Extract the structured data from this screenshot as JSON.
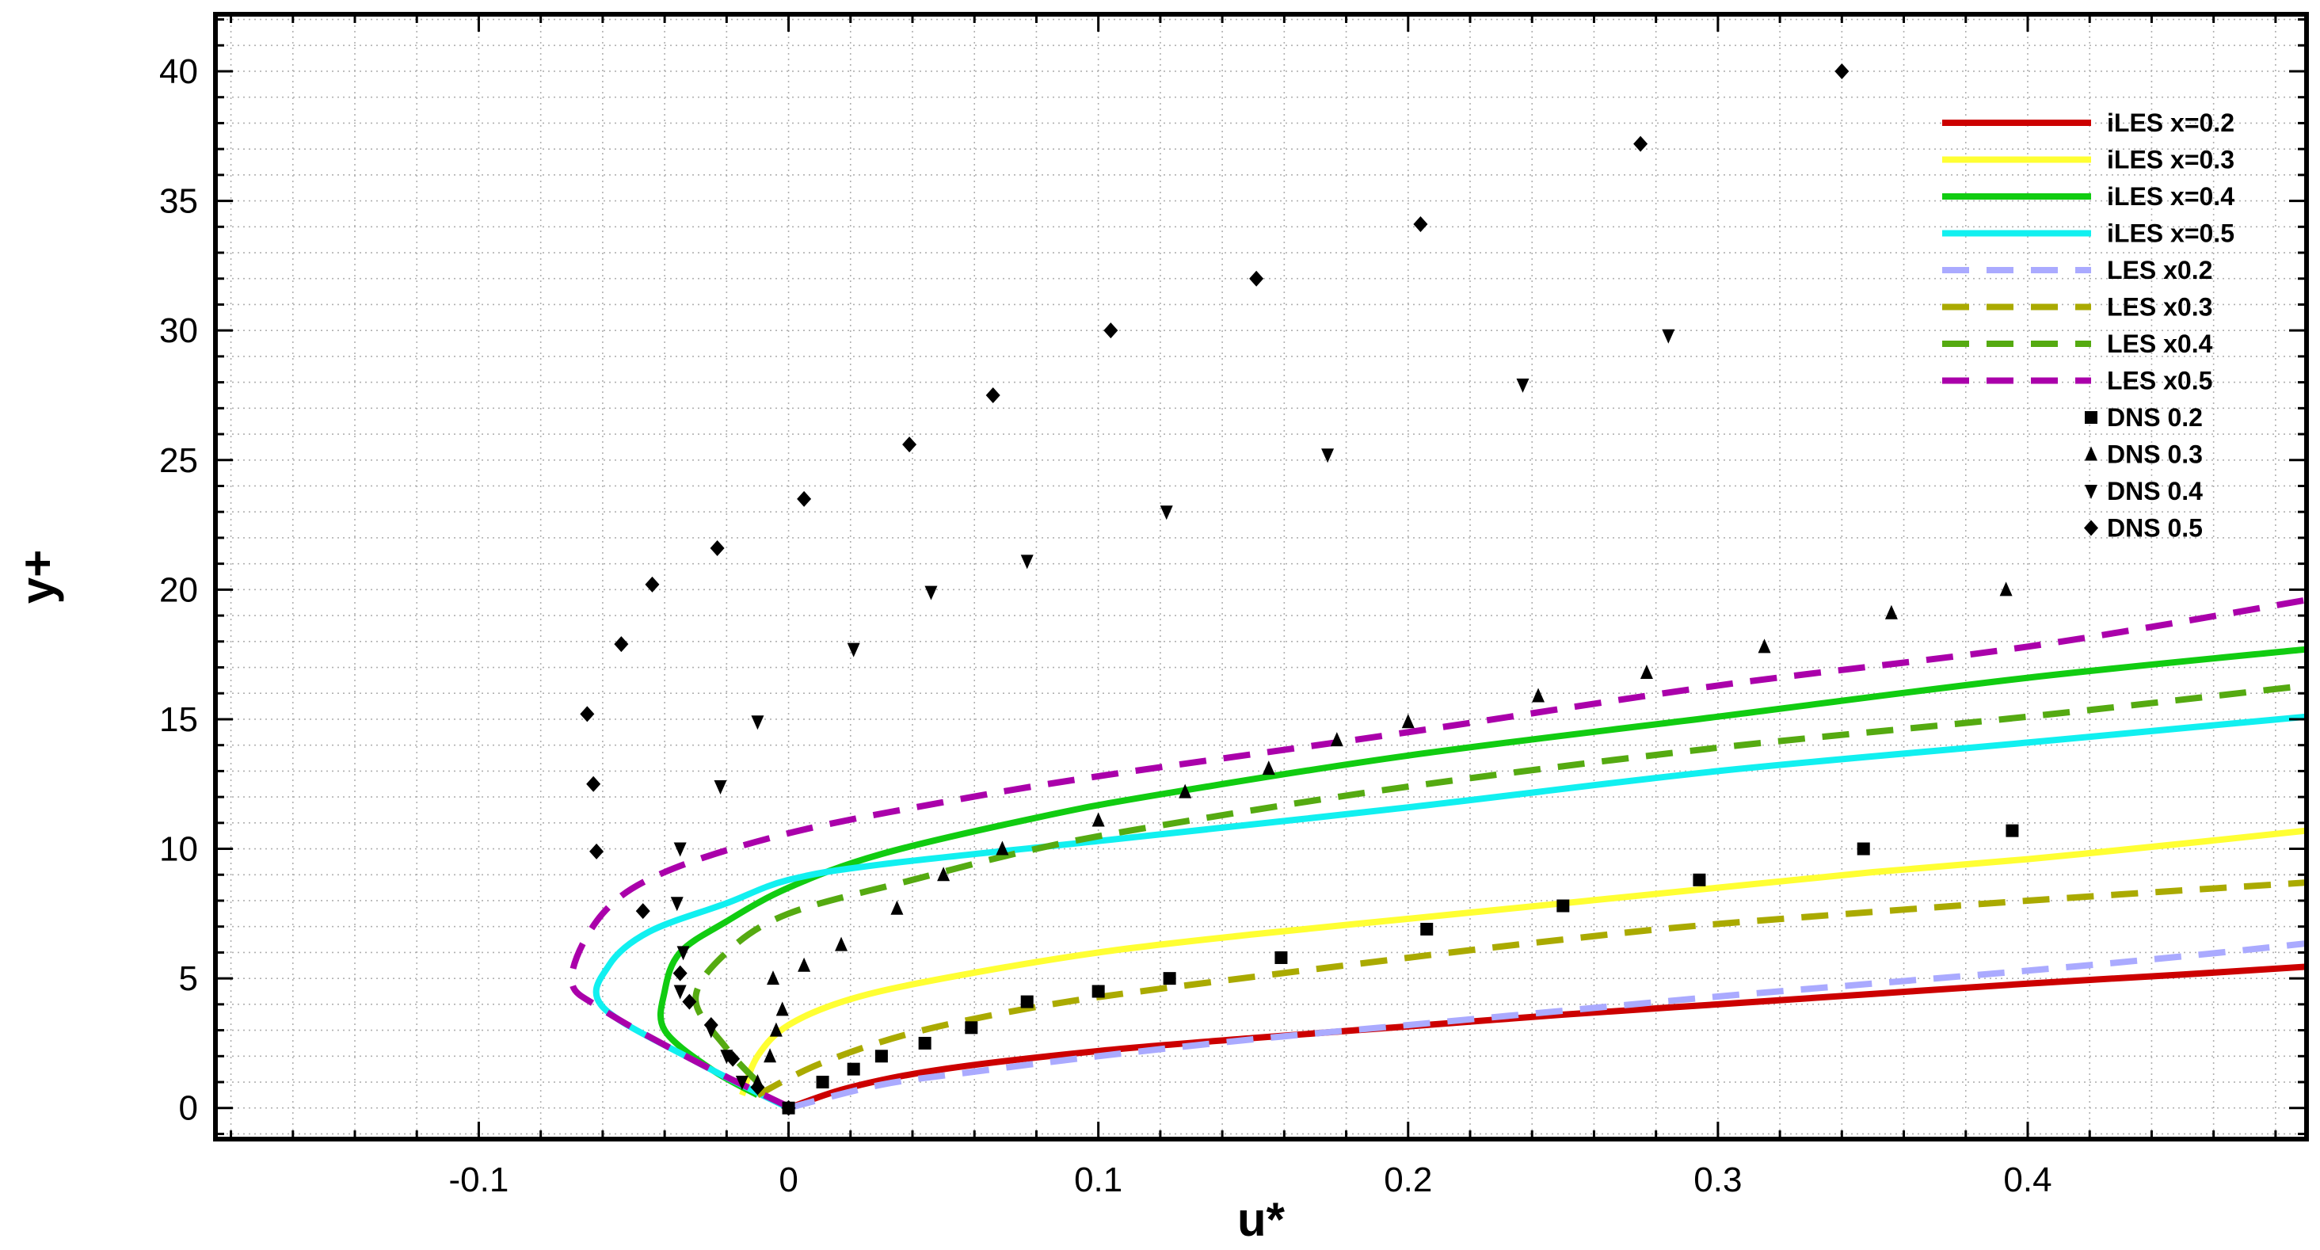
{
  "chart_data": {
    "type": "line",
    "title": "",
    "xlabel": "u*",
    "ylabel": "y+",
    "xlim": [
      -0.185,
      0.49
    ],
    "ylim": [
      -1.2,
      42.2
    ],
    "x_ticks": [
      -0.1,
      0,
      0.1,
      0.2,
      0.3,
      0.4
    ],
    "x_tick_labels": [
      "-0.1",
      "0",
      "0.1",
      "0.2",
      "0.3",
      "0.4"
    ],
    "y_ticks": [
      0,
      5,
      10,
      15,
      20,
      25,
      30,
      35,
      40
    ],
    "y_tick_labels": [
      "0",
      "5",
      "10",
      "15",
      "20",
      "25",
      "30",
      "35",
      "40"
    ],
    "grid": true,
    "legend_position": "top-right",
    "series": [
      {
        "name": "iLES x=0.2",
        "style": "solid",
        "color": "#cc0000",
        "points": [
          [
            0,
            0
          ],
          [
            0.02,
            0.8
          ],
          [
            0.05,
            1.5
          ],
          [
            0.1,
            2.2
          ],
          [
            0.15,
            2.7
          ],
          [
            0.2,
            3.15
          ],
          [
            0.25,
            3.6
          ],
          [
            0.3,
            4.0
          ],
          [
            0.35,
            4.4
          ],
          [
            0.4,
            4.8
          ],
          [
            0.45,
            5.15
          ],
          [
            0.49,
            5.45
          ]
        ]
      },
      {
        "name": "iLES x=0.3",
        "style": "solid",
        "color": "#ffff33",
        "points": [
          [
            -0.015,
            0.5
          ],
          [
            -0.01,
            2.0
          ],
          [
            0,
            3.2
          ],
          [
            0.02,
            4.2
          ],
          [
            0.05,
            5.0
          ],
          [
            0.1,
            6.0
          ],
          [
            0.15,
            6.7
          ],
          [
            0.2,
            7.3
          ],
          [
            0.25,
            7.9
          ],
          [
            0.3,
            8.5
          ],
          [
            0.35,
            9.1
          ],
          [
            0.4,
            9.6
          ],
          [
            0.45,
            10.2
          ],
          [
            0.49,
            10.7
          ]
        ]
      },
      {
        "name": "iLES x=0.4",
        "style": "solid",
        "color": "#11cc11",
        "points": [
          [
            -0.01,
            0.5
          ],
          [
            -0.025,
            1.5
          ],
          [
            -0.04,
            3.0
          ],
          [
            -0.04,
            4.5
          ],
          [
            -0.035,
            6.0
          ],
          [
            -0.02,
            7.2
          ],
          [
            0,
            8.5
          ],
          [
            0.03,
            9.8
          ],
          [
            0.08,
            11.2
          ],
          [
            0.12,
            12.1
          ],
          [
            0.2,
            13.6
          ],
          [
            0.3,
            15.1
          ],
          [
            0.4,
            16.6
          ],
          [
            0.49,
            17.7
          ]
        ]
      },
      {
        "name": "iLES x=0.5",
        "style": "solid",
        "color": "#11f0f0",
        "points": [
          [
            0,
            0
          ],
          [
            -0.03,
            1.8
          ],
          [
            -0.06,
            3.9
          ],
          [
            -0.058,
            5.5
          ],
          [
            -0.045,
            6.8
          ],
          [
            -0.02,
            7.9
          ],
          [
            0,
            8.8
          ],
          [
            0.03,
            9.4
          ],
          [
            0.1,
            10.3
          ],
          [
            0.2,
            11.6
          ],
          [
            0.3,
            13.0
          ],
          [
            0.4,
            14.1
          ],
          [
            0.49,
            15.1
          ]
        ]
      },
      {
        "name": "LES x0.2",
        "style": "dashed",
        "color": "#aaaaff",
        "points": [
          [
            0,
            0
          ],
          [
            0.03,
            0.9
          ],
          [
            0.06,
            1.4
          ],
          [
            0.1,
            2.0
          ],
          [
            0.15,
            2.65
          ],
          [
            0.2,
            3.2
          ],
          [
            0.25,
            3.75
          ],
          [
            0.3,
            4.3
          ],
          [
            0.35,
            4.8
          ],
          [
            0.4,
            5.3
          ],
          [
            0.45,
            5.85
          ],
          [
            0.49,
            6.35
          ]
        ]
      },
      {
        "name": "LES x0.3",
        "style": "dashed",
        "color": "#aaaa00",
        "points": [
          [
            -0.01,
            0.5
          ],
          [
            0.01,
            1.7
          ],
          [
            0.04,
            2.9
          ],
          [
            0.08,
            3.9
          ],
          [
            0.12,
            4.6
          ],
          [
            0.2,
            5.8
          ],
          [
            0.25,
            6.5
          ],
          [
            0.3,
            7.1
          ],
          [
            0.4,
            8.0
          ],
          [
            0.49,
            8.7
          ]
        ]
      },
      {
        "name": "LES x0.4",
        "style": "dashed",
        "color": "#55aa11",
        "points": [
          [
            -0.01,
            1.0
          ],
          [
            -0.02,
            2.3
          ],
          [
            -0.03,
            4.2
          ],
          [
            -0.02,
            6.0
          ],
          [
            0,
            7.5
          ],
          [
            0.04,
            8.8
          ],
          [
            0.08,
            10.0
          ],
          [
            0.12,
            10.9
          ],
          [
            0.2,
            12.4
          ],
          [
            0.3,
            13.9
          ],
          [
            0.4,
            15.1
          ],
          [
            0.49,
            16.3
          ]
        ]
      },
      {
        "name": "LES x0.5",
        "style": "dashed",
        "color": "#aa00aa",
        "points": [
          [
            0,
            0.05
          ],
          [
            -0.03,
            1.8
          ],
          [
            -0.06,
            3.8
          ],
          [
            -0.07,
            5.0
          ],
          [
            -0.06,
            7.5
          ],
          [
            -0.04,
            9.1
          ],
          [
            0,
            10.6
          ],
          [
            0.05,
            11.8
          ],
          [
            0.1,
            12.8
          ],
          [
            0.2,
            14.5
          ],
          [
            0.3,
            16.3
          ],
          [
            0.4,
            17.8
          ],
          [
            0.49,
            19.6
          ]
        ]
      }
    ],
    "scatter_series": [
      {
        "name": "DNS 0.2",
        "marker": "square",
        "color": "#000000",
        "points": [
          [
            0,
            0
          ],
          [
            0.011,
            1.0
          ],
          [
            0.021,
            1.5
          ],
          [
            0.03,
            2.0
          ],
          [
            0.044,
            2.5
          ],
          [
            0.059,
            3.1
          ],
          [
            0.077,
            4.1
          ],
          [
            0.1,
            4.5
          ],
          [
            0.123,
            5.0
          ],
          [
            0.159,
            5.8
          ],
          [
            0.206,
            6.9
          ],
          [
            0.25,
            7.8
          ],
          [
            0.294,
            8.8
          ],
          [
            0.347,
            10.0
          ],
          [
            0.395,
            10.7
          ]
        ]
      },
      {
        "name": "DNS 0.3",
        "marker": "triangle-up",
        "color": "#000000",
        "points": [
          [
            -0.01,
            1.0
          ],
          [
            -0.006,
            2.0
          ],
          [
            -0.004,
            3.0
          ],
          [
            -0.002,
            3.8
          ],
          [
            -0.005,
            5.0
          ],
          [
            0.005,
            5.5
          ],
          [
            0.017,
            6.3
          ],
          [
            0.035,
            7.7
          ],
          [
            0.05,
            9.0
          ],
          [
            0.069,
            10.0
          ],
          [
            0.1,
            11.1
          ],
          [
            0.128,
            12.2
          ],
          [
            0.155,
            13.1
          ],
          [
            0.177,
            14.2
          ],
          [
            0.2,
            14.9
          ],
          [
            0.242,
            15.9
          ],
          [
            0.277,
            16.8
          ],
          [
            0.315,
            17.8
          ],
          [
            0.356,
            19.1
          ],
          [
            0.393,
            20.0
          ]
        ]
      },
      {
        "name": "DNS 0.4",
        "marker": "triangle-down",
        "color": "#000000",
        "points": [
          [
            -0.015,
            1.0
          ],
          [
            -0.02,
            2.0
          ],
          [
            -0.025,
            3.0
          ],
          [
            -0.035,
            4.5
          ],
          [
            -0.034,
            6.0
          ],
          [
            -0.036,
            7.9
          ],
          [
            -0.035,
            10.0
          ],
          [
            -0.022,
            12.4
          ],
          [
            -0.01,
            14.9
          ],
          [
            0.021,
            17.7
          ],
          [
            0.046,
            19.9
          ],
          [
            0.077,
            21.1
          ],
          [
            0.122,
            23.0
          ],
          [
            0.174,
            25.2
          ],
          [
            0.237,
            27.9
          ],
          [
            0.284,
            29.8
          ]
        ]
      },
      {
        "name": "DNS 0.5",
        "marker": "diamond",
        "color": "#000000",
        "points": [
          [
            0,
            0
          ],
          [
            -0.01,
            0.8
          ],
          [
            -0.018,
            1.9
          ],
          [
            -0.025,
            3.2
          ],
          [
            -0.032,
            4.1
          ],
          [
            -0.035,
            5.2
          ],
          [
            -0.047,
            7.6
          ],
          [
            -0.062,
            9.9
          ],
          [
            -0.063,
            12.5
          ],
          [
            -0.065,
            15.2
          ],
          [
            -0.054,
            17.9
          ],
          [
            -0.044,
            20.2
          ],
          [
            -0.023,
            21.6
          ],
          [
            0.005,
            23.5
          ],
          [
            0.039,
            25.6
          ],
          [
            0.066,
            27.5
          ],
          [
            0.104,
            30.0
          ],
          [
            0.151,
            32.0
          ],
          [
            0.204,
            34.1
          ],
          [
            0.275,
            37.2
          ],
          [
            0.34,
            40.0
          ]
        ]
      }
    ]
  }
}
